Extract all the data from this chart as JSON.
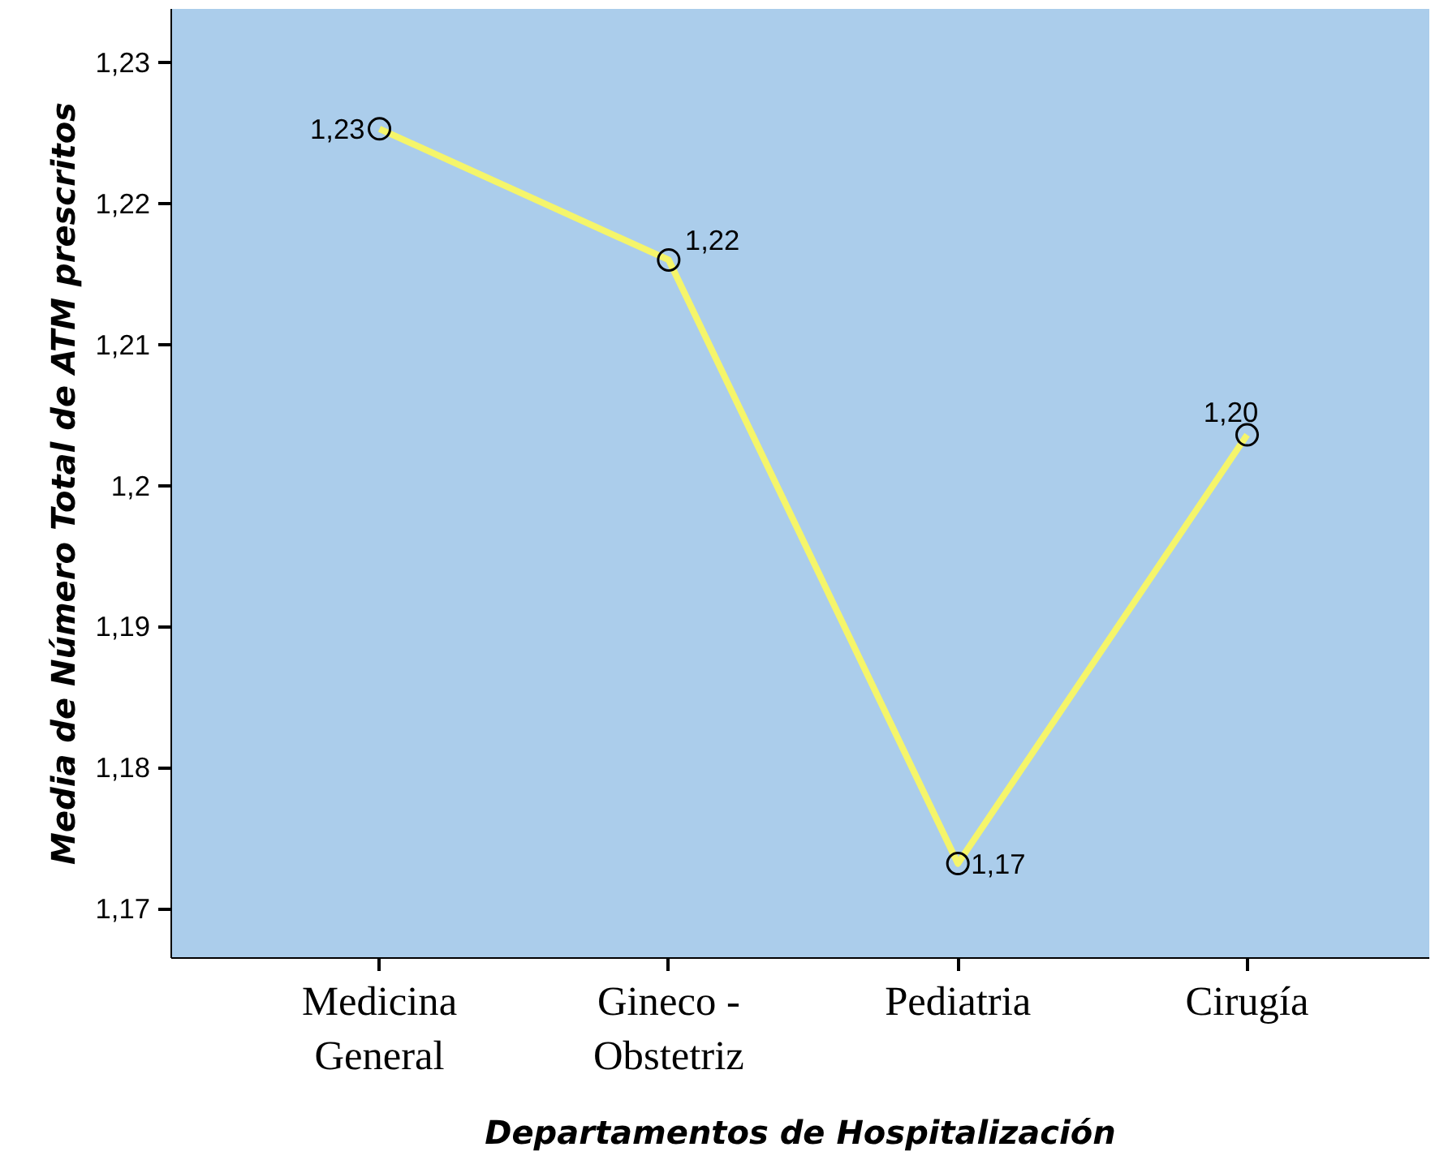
{
  "chart_data": {
    "type": "line",
    "xlabel": "Departamentos de Hospitalización",
    "ylabel": "Media de Número Total de ATM prescritos",
    "categories": [
      "Medicina\nGeneral",
      "Gineco -\nObstetriz",
      "Pediatria",
      "Cirugía"
    ],
    "series": [
      {
        "color": "#f5f56a",
        "values": [
          1.2253,
          1.216,
          1.1732,
          1.2036
        ],
        "value_labels": [
          "1,23",
          "1,22",
          "1,17",
          "1,20"
        ]
      }
    ],
    "ylim": [
      1.1665,
      1.2338
    ],
    "yticks": [
      {
        "value": 1.17,
        "label": "1,17"
      },
      {
        "value": 1.18,
        "label": "1,18"
      },
      {
        "value": 1.19,
        "label": "1,19"
      },
      {
        "value": 1.2,
        "label": "1,2"
      },
      {
        "value": 1.21,
        "label": "1,21"
      },
      {
        "value": 1.22,
        "label": "1,22"
      },
      {
        "value": 1.23,
        "label": "1,23"
      }
    ],
    "marker": "circle",
    "line_style": "solid"
  }
}
